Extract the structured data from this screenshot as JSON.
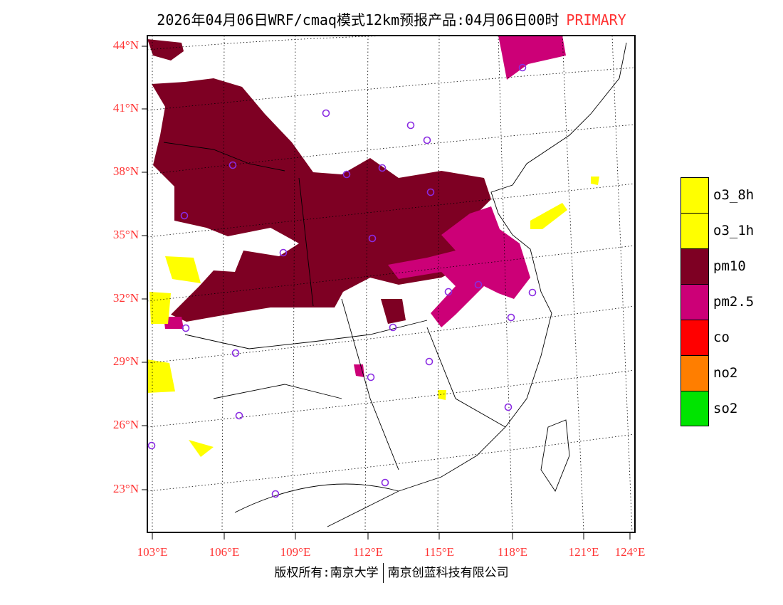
{
  "title": {
    "main": "2026年04月06日WRF/cmaq模式12km预报产品:04月06日00时",
    "tag": "PRIMARY"
  },
  "axes": {
    "lat_labels": [
      "44°N",
      "41°N",
      "38°N",
      "35°N",
      "32°N",
      "29°N",
      "26°N",
      "23°N"
    ],
    "lon_labels": [
      "103°E",
      "106°E",
      "109°E",
      "112°E",
      "115°E",
      "118°E",
      "121°E",
      "124°E"
    ]
  },
  "legend": {
    "items": [
      {
        "label": "o3_8h",
        "color": "#ffff00"
      },
      {
        "label": "o3_1h",
        "color": "#ffff00"
      },
      {
        "label": "pm10",
        "color": "#7e0023"
      },
      {
        "label": "pm2.5",
        "color": "#cc0077"
      },
      {
        "label": "co",
        "color": "#ff0000"
      },
      {
        "label": "no2",
        "color": "#ff7e00"
      },
      {
        "label": "so2",
        "color": "#00e400"
      }
    ]
  },
  "footer": {
    "left": "版权所有:南京大学",
    "right": "南京创蓝科技有限公司"
  }
}
